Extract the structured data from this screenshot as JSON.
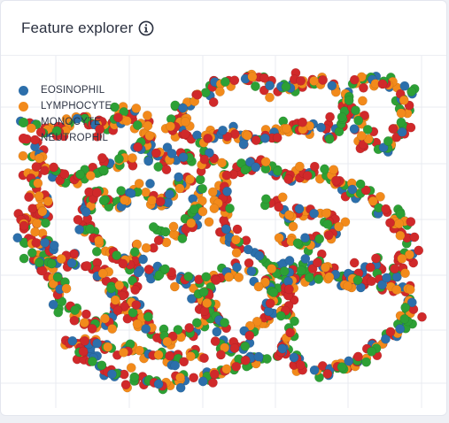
{
  "panel": {
    "title": "Feature explorer",
    "info_icon": "info-icon"
  },
  "colors": {
    "background": "#ffffff",
    "grid": "#e9ebf0",
    "EOSINOPHIL": "#2c6fab",
    "LYMPHOCYTE": "#f28a1b",
    "MONOCYTE": "#2da035",
    "NEUTROPHIL": "#d0292a"
  },
  "chart_data": {
    "type": "scatter",
    "title": "",
    "xlabel": "",
    "ylabel": "",
    "grid": true,
    "legend_position": "top-left",
    "series_names": [
      "EOSINOPHIL",
      "LYMPHOCYTE",
      "MONOCYTE",
      "NEUTROPHIL"
    ],
    "note_values": "approximate 2D embedding structure; points generated along loop paths",
    "paths": [
      [
        [
          0.05,
          0.16
        ],
        [
          0.12,
          0.2
        ],
        [
          0.17,
          0.14
        ],
        [
          0.22,
          0.18
        ],
        [
          0.28,
          0.12
        ],
        [
          0.33,
          0.17
        ],
        [
          0.3,
          0.26
        ],
        [
          0.22,
          0.3
        ],
        [
          0.14,
          0.34
        ],
        [
          0.08,
          0.3
        ],
        [
          0.05,
          0.22
        ]
      ],
      [
        [
          0.4,
          0.12
        ],
        [
          0.48,
          0.03
        ],
        [
          0.56,
          0.02
        ],
        [
          0.63,
          0.06
        ],
        [
          0.7,
          0.02
        ],
        [
          0.77,
          0.06
        ],
        [
          0.8,
          0.14
        ],
        [
          0.74,
          0.2
        ],
        [
          0.66,
          0.16
        ],
        [
          0.58,
          0.22
        ],
        [
          0.5,
          0.18
        ],
        [
          0.44,
          0.22
        ],
        [
          0.38,
          0.18
        ],
        [
          0.4,
          0.12
        ]
      ],
      [
        [
          0.8,
          0.04
        ],
        [
          0.86,
          0.02
        ],
        [
          0.92,
          0.06
        ],
        [
          0.92,
          0.16
        ],
        [
          0.88,
          0.24
        ],
        [
          0.82,
          0.22
        ],
        [
          0.8,
          0.14
        ]
      ],
      [
        [
          0.05,
          0.32
        ],
        [
          0.08,
          0.42
        ],
        [
          0.06,
          0.5
        ],
        [
          0.1,
          0.56
        ],
        [
          0.08,
          0.62
        ],
        [
          0.05,
          0.54
        ],
        [
          0.03,
          0.44
        ]
      ],
      [
        [
          0.2,
          0.38
        ],
        [
          0.26,
          0.42
        ],
        [
          0.3,
          0.36
        ],
        [
          0.36,
          0.42
        ],
        [
          0.4,
          0.34
        ],
        [
          0.46,
          0.4
        ],
        [
          0.42,
          0.5
        ],
        [
          0.34,
          0.52
        ],
        [
          0.28,
          0.6
        ],
        [
          0.22,
          0.56
        ],
        [
          0.18,
          0.48
        ],
        [
          0.2,
          0.38
        ]
      ],
      [
        [
          0.5,
          0.34
        ],
        [
          0.58,
          0.28
        ],
        [
          0.66,
          0.34
        ],
        [
          0.72,
          0.3
        ],
        [
          0.78,
          0.36
        ],
        [
          0.84,
          0.4
        ],
        [
          0.9,
          0.46
        ],
        [
          0.94,
          0.56
        ],
        [
          0.9,
          0.64
        ],
        [
          0.84,
          0.6
        ],
        [
          0.78,
          0.66
        ],
        [
          0.72,
          0.6
        ],
        [
          0.64,
          0.62
        ],
        [
          0.56,
          0.58
        ],
        [
          0.5,
          0.5
        ],
        [
          0.5,
          0.34
        ]
      ],
      [
        [
          0.1,
          0.62
        ],
        [
          0.16,
          0.58
        ],
        [
          0.22,
          0.64
        ],
        [
          0.26,
          0.72
        ],
        [
          0.22,
          0.8
        ],
        [
          0.16,
          0.78
        ],
        [
          0.12,
          0.7
        ],
        [
          0.1,
          0.62
        ]
      ],
      [
        [
          0.28,
          0.66
        ],
        [
          0.34,
          0.62
        ],
        [
          0.42,
          0.66
        ],
        [
          0.46,
          0.72
        ],
        [
          0.44,
          0.8
        ],
        [
          0.38,
          0.84
        ],
        [
          0.32,
          0.8
        ],
        [
          0.28,
          0.72
        ],
        [
          0.28,
          0.66
        ]
      ],
      [
        [
          0.48,
          0.64
        ],
        [
          0.56,
          0.62
        ],
        [
          0.62,
          0.68
        ],
        [
          0.6,
          0.78
        ],
        [
          0.54,
          0.82
        ],
        [
          0.48,
          0.78
        ],
        [
          0.46,
          0.7
        ],
        [
          0.48,
          0.64
        ]
      ],
      [
        [
          0.64,
          0.66
        ],
        [
          0.72,
          0.64
        ],
        [
          0.82,
          0.66
        ],
        [
          0.92,
          0.68
        ],
        [
          0.94,
          0.76
        ],
        [
          0.88,
          0.84
        ],
        [
          0.8,
          0.92
        ],
        [
          0.7,
          0.94
        ],
        [
          0.64,
          0.88
        ],
        [
          0.66,
          0.8
        ],
        [
          0.64,
          0.72
        ],
        [
          0.64,
          0.66
        ]
      ],
      [
        [
          0.14,
          0.84
        ],
        [
          0.2,
          0.92
        ],
        [
          0.28,
          0.96
        ],
        [
          0.36,
          0.98
        ],
        [
          0.44,
          0.96
        ],
        [
          0.52,
          0.94
        ],
        [
          0.58,
          0.9
        ],
        [
          0.54,
          0.86
        ],
        [
          0.46,
          0.88
        ],
        [
          0.38,
          0.9
        ],
        [
          0.3,
          0.88
        ],
        [
          0.22,
          0.86
        ],
        [
          0.14,
          0.84
        ]
      ],
      [
        [
          0.3,
          0.22
        ],
        [
          0.36,
          0.28
        ],
        [
          0.44,
          0.26
        ],
        [
          0.5,
          0.3
        ]
      ],
      [
        [
          0.6,
          0.4
        ],
        [
          0.66,
          0.46
        ],
        [
          0.72,
          0.44
        ],
        [
          0.76,
          0.5
        ],
        [
          0.7,
          0.54
        ],
        [
          0.62,
          0.52
        ]
      ]
    ]
  }
}
